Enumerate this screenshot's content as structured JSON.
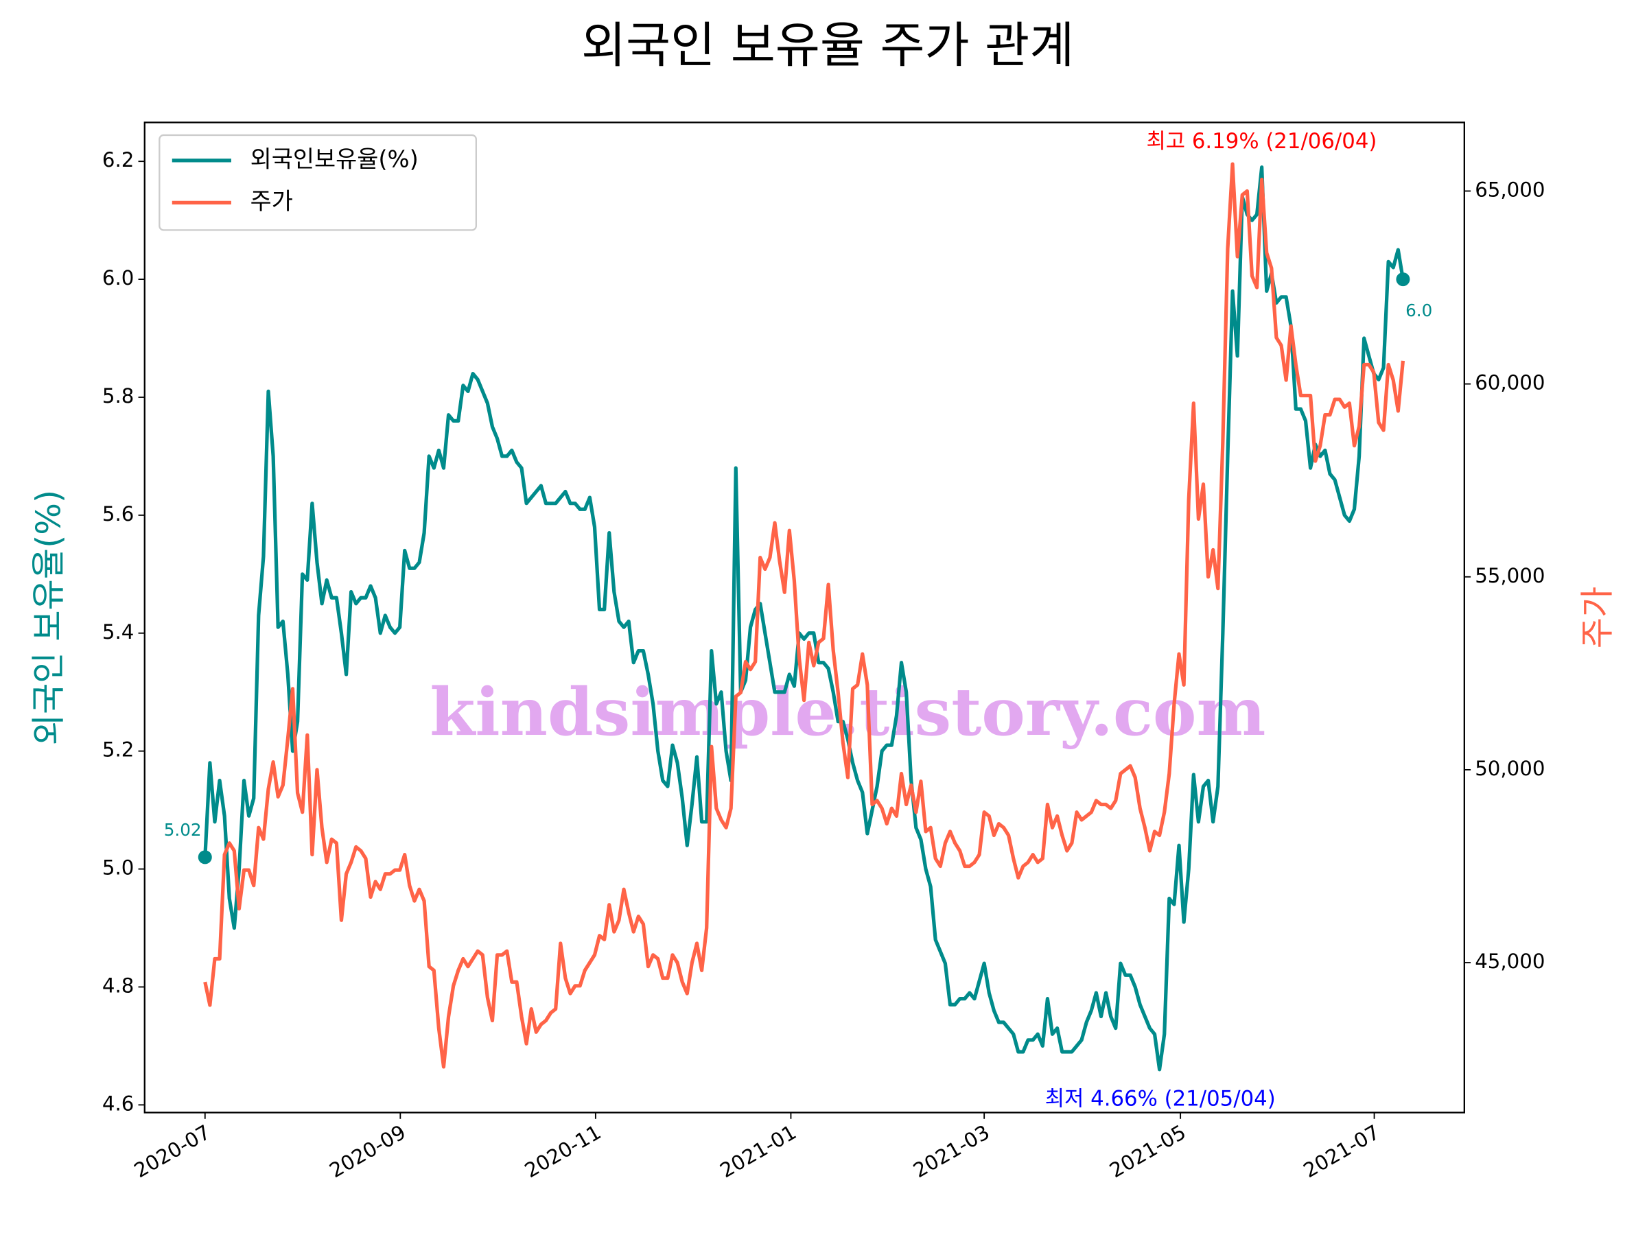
{
  "chart_data": {
    "type": "line",
    "title": "외국인 보유율 주가 관계",
    "y_label": "외국인 보유율(%)",
    "y2_label": "주가",
    "watermark": "kindsimple.tistory.com",
    "legend": "upper left",
    "xlim": [
      -12.4,
      258.6
    ],
    "xticks": [
      {
        "value": 0,
        "label": "2020-07"
      },
      {
        "value": 40.1,
        "label": "2020-09"
      },
      {
        "value": 80.2,
        "label": "2020-11"
      },
      {
        "value": 120.3,
        "label": "2021-01"
      },
      {
        "value": 160.0,
        "label": "2021-03"
      },
      {
        "value": 200.3,
        "label": "2021-05"
      },
      {
        "value": 240.1,
        "label": "2021-07"
      }
    ],
    "ylim": [
      4.587,
      6.266
    ],
    "yticks": [
      4.6,
      4.8,
      {
        "value": 5,
        "label": "5.0"
      },
      5.2,
      5.4,
      5.6,
      5.8,
      {
        "value": 6,
        "label": "6.0"
      },
      6.2
    ],
    "y2lim": [
      41115,
      66778
    ],
    "y2ticks": [
      {
        "value": 45000,
        "label": "45,000"
      },
      {
        "value": 50000,
        "label": "50,000"
      },
      {
        "value": 55000,
        "label": "55,000"
      },
      {
        "value": 60000,
        "label": "60,000"
      },
      {
        "value": 65000,
        "label": "65,000"
      }
    ],
    "annotations": [
      {
        "text": "5.02",
        "color": "#008b8b"
      },
      {
        "text": "6.0",
        "color": "#008b8b"
      },
      {
        "text": "최고 6.19% (21/06/04)",
        "color": "#ff0000"
      },
      {
        "text": "최저 4.66% (21/05/04)",
        "color": "#0000ff"
      }
    ],
    "series": [
      {
        "name": "외국인보유율(%)",
        "color": "#008b8b",
        "axis": "y",
        "values": [
          5.02,
          5.18,
          5.08,
          5.15,
          5.09,
          4.95,
          4.9,
          5.0,
          5.15,
          5.09,
          5.12,
          5.43,
          5.53,
          5.81,
          5.7,
          5.41,
          5.42,
          5.33,
          5.2,
          5.25,
          5.5,
          5.49,
          5.62,
          5.52,
          5.45,
          5.49,
          5.46,
          5.46,
          5.4,
          5.33,
          5.47,
          5.45,
          5.46,
          5.46,
          5.48,
          5.46,
          5.4,
          5.43,
          5.41,
          5.4,
          5.41,
          5.54,
          5.51,
          5.51,
          5.52,
          5.57,
          5.7,
          5.68,
          5.71,
          5.68,
          5.77,
          5.76,
          5.76,
          5.82,
          5.81,
          5.84,
          5.83,
          5.81,
          5.79,
          5.75,
          5.73,
          5.7,
          5.7,
          5.71,
          5.69,
          5.68,
          5.62,
          5.63,
          5.64,
          5.65,
          5.62,
          5.62,
          5.62,
          5.63,
          5.64,
          5.62,
          5.62,
          5.61,
          5.61,
          5.63,
          5.58,
          5.44,
          5.44,
          5.57,
          5.47,
          5.42,
          5.41,
          5.42,
          5.35,
          5.37,
          5.37,
          5.33,
          5.28,
          5.2,
          5.15,
          5.14,
          5.21,
          5.18,
          5.12,
          5.04,
          5.11,
          5.19,
          5.08,
          5.08,
          5.37,
          5.28,
          5.3,
          5.2,
          5.15,
          5.68,
          5.3,
          5.32,
          5.41,
          5.44,
          5.45,
          5.4,
          5.35,
          5.3,
          5.3,
          5.3,
          5.33,
          5.31,
          5.4,
          5.39,
          5.4,
          5.4,
          5.35,
          5.35,
          5.34,
          5.3,
          5.25,
          5.25,
          5.22,
          5.18,
          5.15,
          5.13,
          5.06,
          5.1,
          5.14,
          5.2,
          5.21,
          5.21,
          5.26,
          5.35,
          5.3,
          5.15,
          5.07,
          5.05,
          5.0,
          4.97,
          4.88,
          4.86,
          4.84,
          4.77,
          4.77,
          4.78,
          4.78,
          4.79,
          4.78,
          4.81,
          4.84,
          4.79,
          4.76,
          4.74,
          4.74,
          4.73,
          4.72,
          4.69,
          4.69,
          4.71,
          4.71,
          4.72,
          4.7,
          4.78,
          4.72,
          4.73,
          4.69,
          4.69,
          4.69,
          4.7,
          4.71,
          4.74,
          4.76,
          4.79,
          4.75,
          4.79,
          4.75,
          4.73,
          4.84,
          4.82,
          4.82,
          4.8,
          4.77,
          4.75,
          4.73,
          4.72,
          4.66,
          4.72,
          4.95,
          4.94,
          5.04,
          4.91,
          5.0,
          5.16,
          5.08,
          5.14,
          5.15,
          5.08,
          5.14,
          5.4,
          5.7,
          5.98,
          5.87,
          6.14,
          6.11,
          6.1,
          6.11,
          6.19,
          5.98,
          6.01,
          5.96,
          5.97,
          5.97,
          5.92,
          5.78,
          5.78,
          5.76,
          5.68,
          5.72,
          5.7,
          5.71,
          5.67,
          5.66,
          5.63,
          5.6,
          5.59,
          5.61,
          5.7,
          5.9,
          5.87,
          5.84,
          5.83,
          5.85,
          6.03,
          6.02,
          6.05,
          6.0
        ]
      },
      {
        "name": "주가",
        "color": "#ff6347",
        "axis": "y2",
        "values": [
          44500,
          43900,
          45100,
          45100,
          47800,
          48100,
          47900,
          46400,
          47400,
          47400,
          47000,
          48500,
          48200,
          49500,
          50200,
          49300,
          49600,
          50800,
          52100,
          49400,
          48900,
          50900,
          47800,
          50000,
          48500,
          47600,
          48200,
          48100,
          46100,
          47300,
          47600,
          48000,
          47900,
          47700,
          46700,
          47100,
          46900,
          47300,
          47300,
          47400,
          47400,
          47800,
          47000,
          46600,
          46900,
          46600,
          44900,
          44800,
          43300,
          42300,
          43600,
          44400,
          44800,
          45100,
          44900,
          45100,
          45300,
          45200,
          44100,
          43500,
          45200,
          45200,
          45300,
          44500,
          44500,
          43600,
          42900,
          43800,
          43200,
          43400,
          43500,
          43700,
          43800,
          45500,
          44600,
          44200,
          44400,
          44400,
          44800,
          45000,
          45200,
          45700,
          45600,
          46500,
          45800,
          46100,
          46900,
          46300,
          45800,
          46200,
          46000,
          44900,
          45200,
          45100,
          44600,
          44600,
          45200,
          45000,
          44500,
          44200,
          45000,
          45500,
          44800,
          45900,
          50600,
          49000,
          48700,
          48500,
          49000,
          51900,
          52000,
          52800,
          52600,
          52800,
          55500,
          55200,
          55500,
          56400,
          55400,
          54600,
          56200,
          54900,
          52900,
          51800,
          53300,
          52700,
          53300,
          53400,
          54800,
          53100,
          52000,
          50700,
          49800,
          52100,
          52200,
          53000,
          52200,
          49100,
          49200,
          49000,
          48600,
          49000,
          48800,
          49900,
          49100,
          49600,
          48900,
          49700,
          48400,
          48500,
          47700,
          47500,
          48100,
          48400,
          48100,
          47900,
          47500,
          47500,
          47600,
          47800,
          48900,
          48800,
          48300,
          48600,
          48500,
          48300,
          47700,
          47200,
          47500,
          47600,
          47800,
          47600,
          47700,
          49100,
          48500,
          48800,
          48300,
          47900,
          48100,
          48900,
          48700,
          48800,
          48900,
          49200,
          49100,
          49100,
          49000,
          49200,
          49900,
          50000,
          50100,
          49800,
          49000,
          48500,
          47900,
          48400,
          48300,
          48900,
          49900,
          51700,
          53000,
          52200,
          57000,
          59500,
          56500,
          57400,
          55000,
          55700,
          54700,
          58500,
          63500,
          65700,
          63300,
          64900,
          65000,
          62800,
          62500,
          65300,
          63400,
          63000,
          61200,
          61000,
          60100,
          61500,
          60500,
          59700,
          59700,
          59700,
          58000,
          58400,
          59200,
          59200,
          59600,
          59600,
          59400,
          59500,
          58400,
          58900,
          60500,
          60500,
          60300,
          59000,
          58800,
          60500,
          60100,
          59300,
          60600
        ]
      }
    ]
  }
}
